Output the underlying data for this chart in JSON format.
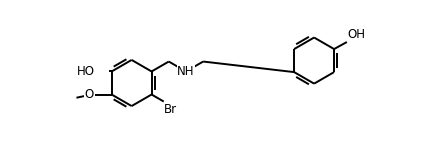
{
  "bg": "#ffffff",
  "lc": "#000000",
  "lw": 1.4,
  "fs": 8.5,
  "r": 0.72,
  "xlim": [
    0,
    10.5
  ],
  "ylim": [
    0,
    3.8
  ]
}
